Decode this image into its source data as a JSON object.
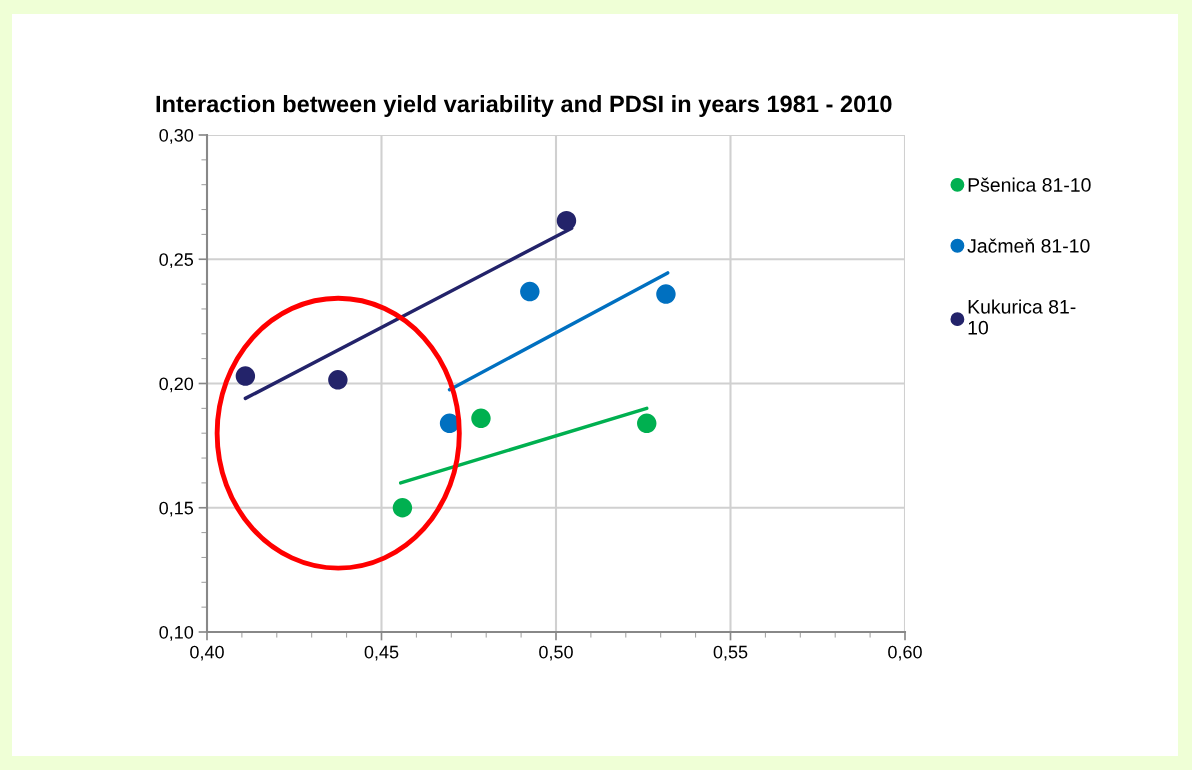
{
  "chart_data": {
    "type": "scatter",
    "title": "Interaction between yield variability and PDSI in years 1981 - 2010",
    "series": [
      {
        "name": "Pšenica 81-10",
        "color": "#00b050",
        "x": [
          0.456,
          0.4785,
          0.526
        ],
        "values": [
          0.15,
          0.186,
          0.184
        ]
      },
      {
        "name": "Jačmeň 81-10",
        "color": "#0070c0",
        "x": [
          0.4695,
          0.4925,
          0.5315
        ],
        "values": [
          0.184,
          0.237,
          0.236
        ]
      },
      {
        "name": "Kukurica 81-10",
        "color": "#23236a",
        "x": [
          0.411,
          0.4375,
          0.503
        ],
        "values": [
          0.203,
          0.2015,
          0.2655
        ]
      },
      {
        "type": "line",
        "marker": "none",
        "color": "#00b050",
        "x": [
          0.4555,
          0.526
        ],
        "values": [
          0.16,
          0.19
        ]
      },
      {
        "type": "line",
        "marker": "none",
        "color": "#0070c0",
        "x": [
          0.4695,
          0.532
        ],
        "values": [
          0.1975,
          0.2445
        ]
      },
      {
        "type": "line",
        "marker": "none",
        "color": "#23236a",
        "x": [
          0.411,
          0.5045
        ],
        "values": [
          0.194,
          0.2625
        ]
      }
    ],
    "xlim": [
      0.4,
      0.6
    ],
    "ylim": [
      0.1,
      0.3
    ],
    "xticks": [
      {
        "value": 0.4,
        "label": "0,40"
      },
      {
        "value": 0.45,
        "label": "0,45"
      },
      {
        "value": 0.5,
        "label": "0,50"
      },
      {
        "value": 0.55,
        "label": "0,55"
      },
      {
        "value": 0.6,
        "label": "0,60"
      }
    ],
    "yticks": [
      {
        "value": 0.1,
        "label": "0,10"
      },
      {
        "value": 0.15,
        "label": "0,15"
      },
      {
        "value": 0.2,
        "label": "0,20"
      },
      {
        "value": 0.25,
        "label": "0,25"
      },
      {
        "value": 0.3,
        "label": "0,30"
      }
    ],
    "grid": true,
    "legend": "right",
    "marker": "circle"
  }
}
